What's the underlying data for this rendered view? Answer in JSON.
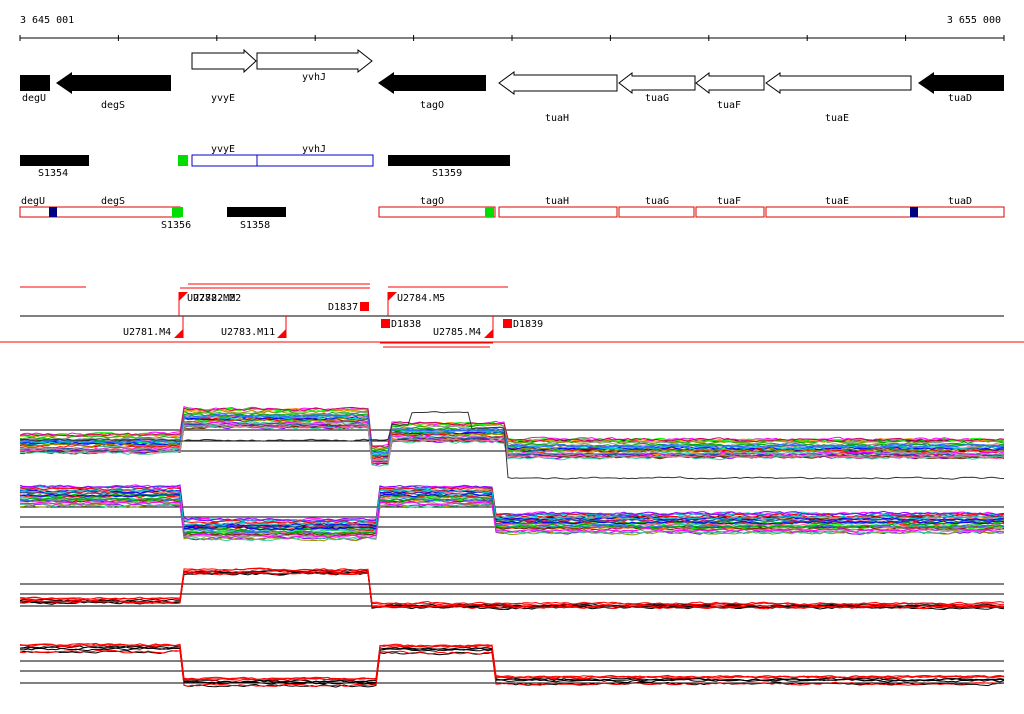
{
  "axis": {
    "start": "3 645 001",
    "end": "3 655 000"
  },
  "genes": [
    {
      "name": "degU",
      "filled": true,
      "strand": "-"
    },
    {
      "name": "degS",
      "filled": true,
      "strand": "-"
    },
    {
      "name": "yvyE",
      "filled": false,
      "strand": "+"
    },
    {
      "name": "yvhJ",
      "filled": false,
      "strand": "+"
    },
    {
      "name": "tagO",
      "filled": true,
      "strand": "-"
    },
    {
      "name": "tuaH",
      "filled": false,
      "strand": "-"
    },
    {
      "name": "tuaG",
      "filled": false,
      "strand": "-"
    },
    {
      "name": "tuaF",
      "filled": false,
      "strand": "-"
    },
    {
      "name": "tuaE",
      "filled": false,
      "strand": "-"
    },
    {
      "name": "tuaD",
      "filled": true,
      "strand": "-"
    }
  ],
  "segments_top": [
    {
      "name": "S1354"
    },
    {
      "name": "yvyE"
    },
    {
      "name": "yvhJ"
    },
    {
      "name": "S1359"
    }
  ],
  "segments_mid": [
    {
      "name": "degU"
    },
    {
      "name": "degS"
    },
    {
      "name": "S1356"
    },
    {
      "name": "S1358"
    },
    {
      "name": "tagO"
    },
    {
      "name": "tuaH"
    },
    {
      "name": "tuaG"
    },
    {
      "name": "tuaF"
    },
    {
      "name": "tuaE"
    },
    {
      "name": "tuaD"
    }
  ],
  "features": [
    {
      "name": "U2782.M2",
      "overlap_name": "U2782.M2"
    },
    {
      "name": "D1837"
    },
    {
      "name": "U2784.M5"
    },
    {
      "name": "U2781.M4"
    },
    {
      "name": "U2783.M11"
    },
    {
      "name": "D1838"
    },
    {
      "name": "U2785.M4"
    },
    {
      "name": "D1839"
    }
  ],
  "colors": {
    "gene_fill": "#000000",
    "segment_red": "#dd0000",
    "segment_blue": "#0000cc",
    "marker_green": "#00dd00",
    "marker_navy": "#000080",
    "feature_red": "#ff0000"
  },
  "tracks": [
    {
      "name": "profile-track-1",
      "style": "multicolor"
    },
    {
      "name": "profile-track-2",
      "style": "multicolor"
    },
    {
      "name": "profile-track-3",
      "style": "red-black"
    },
    {
      "name": "profile-track-4",
      "style": "red-black"
    }
  ]
}
